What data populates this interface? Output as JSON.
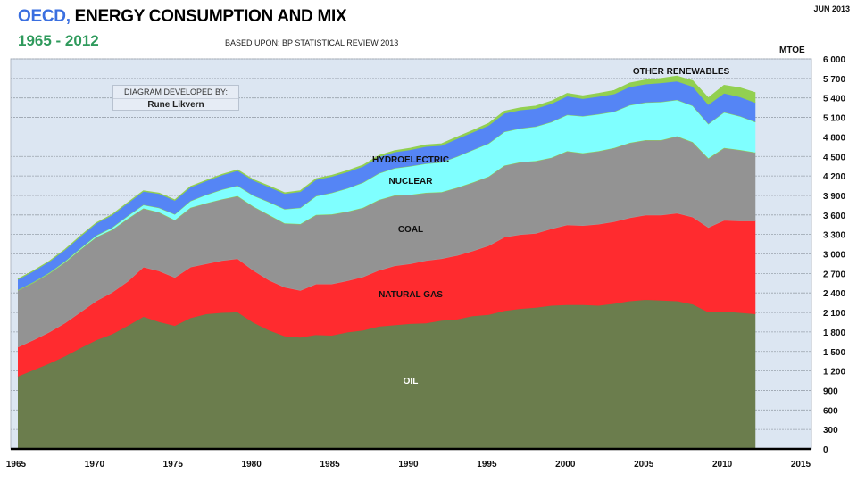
{
  "header": {
    "title_accent": "OECD,",
    "title_rest": " ENERGY CONSUMPTION AND MIX",
    "subtitle": "1965 - 2012",
    "source": "BASED UPON: BP STATISTICAL REVIEW 2013",
    "date": "JUN 2013"
  },
  "credit": {
    "line1": "DIAGRAM DEVELOPED BY:",
    "line2": "Rune Likvern"
  },
  "colors": {
    "oil": "#6b7d4d",
    "natural_gas": "#ff2b2f",
    "coal": "#939393",
    "nuclear": "#7fffff",
    "hydroelectric": "#5585f5",
    "other_renewables": "#92d050",
    "plot_bg": "#dce6f2"
  },
  "chart_data": {
    "type": "area",
    "stacked": true,
    "title": "OECD, ENERGY CONSUMPTION AND MIX",
    "subtitle": "1965 - 2012",
    "xlabel": "",
    "ylabel": "MTOE",
    "xlim": [
      1965,
      2015
    ],
    "ylim": [
      0,
      6000
    ],
    "x_ticks": [
      1965,
      1970,
      1975,
      1980,
      1985,
      1990,
      1995,
      2000,
      2005,
      2010,
      2015
    ],
    "y_ticks": [
      "0",
      "300",
      "600",
      "900",
      "1 200",
      "1 500",
      "1 800",
      "2 100",
      "2 400",
      "2 700",
      "3 000",
      "3 300",
      "3 600",
      "3 900",
      "4 200",
      "4 500",
      "4 800",
      "5 100",
      "5 400",
      "5 700",
      "6 000"
    ],
    "y_tick_values": [
      0,
      300,
      600,
      900,
      1200,
      1500,
      1800,
      2100,
      2400,
      2700,
      3000,
      3300,
      3600,
      3900,
      4200,
      4500,
      4800,
      5100,
      5400,
      5700,
      6000
    ],
    "y_axis_position": "right",
    "grid": true,
    "x": [
      1965,
      1966,
      1967,
      1968,
      1969,
      1970,
      1971,
      1972,
      1973,
      1974,
      1975,
      1976,
      1977,
      1978,
      1979,
      1980,
      1981,
      1982,
      1983,
      1984,
      1985,
      1986,
      1987,
      1988,
      1989,
      1990,
      1991,
      1992,
      1993,
      1994,
      1995,
      1996,
      1997,
      1998,
      1999,
      2000,
      2001,
      2002,
      2003,
      2004,
      2005,
      2006,
      2007,
      2008,
      2009,
      2010,
      2011,
      2012
    ],
    "series": [
      {
        "name": "OIL",
        "values": [
          1120,
          1220,
          1320,
          1430,
          1560,
          1680,
          1770,
          1900,
          2040,
          1960,
          1900,
          2020,
          2080,
          2100,
          2110,
          1950,
          1830,
          1740,
          1720,
          1760,
          1750,
          1800,
          1830,
          1890,
          1910,
          1930,
          1940,
          1980,
          2000,
          2050,
          2070,
          2130,
          2160,
          2180,
          2210,
          2220,
          2220,
          2210,
          2240,
          2280,
          2300,
          2290,
          2280,
          2230,
          2110,
          2120,
          2100,
          2080
        ]
      },
      {
        "name": "NATURAL GAS",
        "values": [
          450,
          460,
          480,
          510,
          550,
          600,
          640,
          680,
          760,
          780,
          740,
          780,
          770,
          800,
          820,
          800,
          770,
          750,
          720,
          780,
          790,
          790,
          820,
          860,
          910,
          920,
          960,
          950,
          980,
          1000,
          1060,
          1130,
          1140,
          1140,
          1180,
          1230,
          1220,
          1250,
          1260,
          1280,
          1300,
          1310,
          1350,
          1340,
          1300,
          1400,
          1410,
          1430
        ]
      },
      {
        "name": "COAL",
        "values": [
          870,
          880,
          900,
          930,
          960,
          980,
          960,
          960,
          900,
          900,
          880,
          910,
          930,
          940,
          960,
          980,
          1000,
          980,
          1020,
          1060,
          1070,
          1060,
          1060,
          1080,
          1080,
          1060,
          1040,
          1020,
          1040,
          1050,
          1060,
          1100,
          1110,
          1110,
          1090,
          1130,
          1110,
          1120,
          1130,
          1150,
          1150,
          1150,
          1180,
          1150,
          1060,
          1110,
          1090,
          1050
        ]
      },
      {
        "name": "NUCLEAR",
        "values": [
          5,
          8,
          10,
          15,
          20,
          25,
          35,
          45,
          55,
          70,
          90,
          105,
          130,
          150,
          160,
          170,
          200,
          220,
          250,
          290,
          330,
          360,
          390,
          410,
          420,
          440,
          450,
          460,
          480,
          500,
          510,
          520,
          520,
          530,
          550,
          560,
          570,
          570,
          560,
          580,
          580,
          590,
          560,
          560,
          530,
          550,
          520,
          470
        ]
      },
      {
        "name": "HYDROELECTRIC",
        "values": [
          165,
          170,
          175,
          180,
          185,
          190,
          195,
          200,
          210,
          220,
          215,
          215,
          215,
          225,
          235,
          235,
          235,
          240,
          250,
          255,
          255,
          255,
          250,
          255,
          250,
          255,
          265,
          260,
          275,
          275,
          280,
          285,
          285,
          280,
          285,
          290,
          270,
          275,
          275,
          285,
          285,
          295,
          290,
          300,
          300,
          295,
          300,
          300
        ]
      },
      {
        "name": "OTHER RENEWABLES",
        "values": [
          3,
          3,
          3,
          4,
          4,
          4,
          5,
          5,
          6,
          6,
          6,
          7,
          7,
          8,
          8,
          9,
          10,
          11,
          12,
          13,
          14,
          15,
          16,
          17,
          18,
          20,
          22,
          24,
          25,
          26,
          28,
          30,
          32,
          34,
          36,
          40,
          42,
          45,
          50,
          55,
          60,
          65,
          75,
          85,
          100,
          120,
          135,
          150
        ]
      }
    ],
    "series_labels": [
      "OIL",
      "NATURAL GAS",
      "COAL",
      "NUCLEAR",
      "HYDROELECTRIC",
      "OTHER RENEWABLES"
    ]
  }
}
